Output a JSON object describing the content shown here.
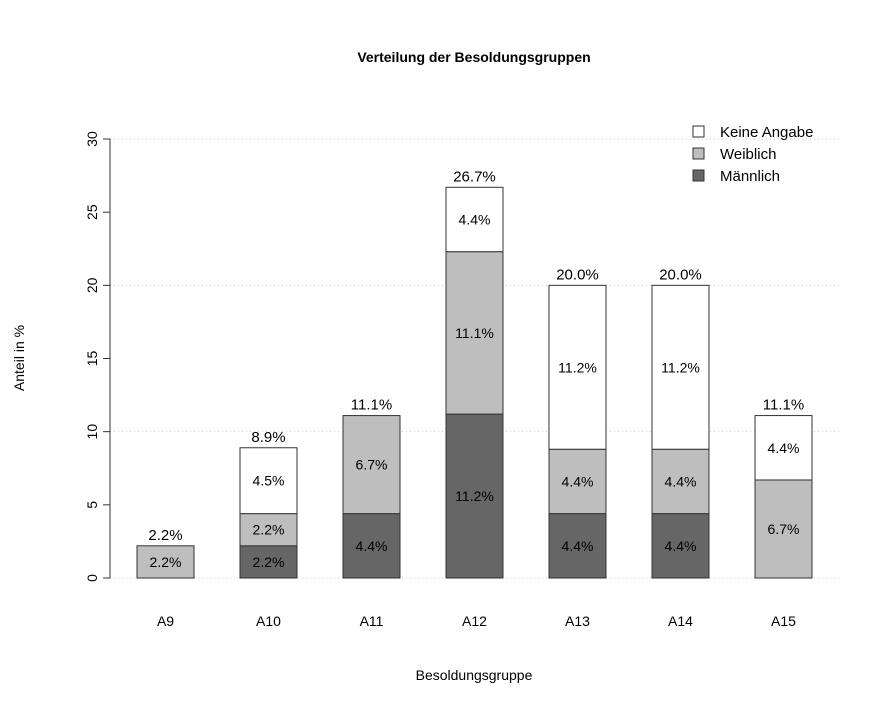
{
  "chart_data": {
    "type": "bar",
    "stacked": true,
    "title": "Verteilung der Besoldungsgruppen",
    "xlabel": "Besoldungsgruppe",
    "ylabel": "Anteil in %",
    "ylim": [
      0,
      30
    ],
    "yticks": [
      0,
      5,
      10,
      15,
      20,
      25,
      30
    ],
    "grid": {
      "horizontal": [
        0,
        10,
        20,
        30
      ],
      "style": "dotted"
    },
    "legend_position": "top-right",
    "categories": [
      "A9",
      "A10",
      "A11",
      "A12",
      "A13",
      "A14",
      "A15"
    ],
    "series": [
      {
        "name": "Männlich",
        "color": "#666666",
        "values": [
          0,
          2.2,
          4.4,
          11.2,
          4.4,
          4.4,
          0
        ],
        "labels": [
          "",
          "2.2%",
          "4.4%",
          "11.2%",
          "4.4%",
          "4.4%",
          ""
        ]
      },
      {
        "name": "Weiblich",
        "color": "#bebebe",
        "values": [
          2.2,
          2.2,
          6.7,
          11.1,
          4.4,
          4.4,
          6.7
        ],
        "labels": [
          "2.2%",
          "2.2%",
          "6.7%",
          "11.1%",
          "4.4%",
          "4.4%",
          "6.7%"
        ]
      },
      {
        "name": "Keine Angabe",
        "color": "#ffffff",
        "values": [
          0,
          4.5,
          0,
          4.4,
          11.2,
          11.2,
          4.4
        ],
        "labels": [
          "",
          "4.5%",
          "",
          "4.4%",
          "11.2%",
          "11.2%",
          "4.4%"
        ]
      }
    ],
    "totals": [
      2.2,
      8.9,
      11.1,
      26.7,
      20.0,
      20.0,
      11.1
    ],
    "total_labels": [
      "2.2%",
      "8.9%",
      "11.1%",
      "26.7%",
      "20.0%",
      "20.0%",
      "11.1%"
    ],
    "legend_order": [
      "Keine Angabe",
      "Weiblich",
      "Männlich"
    ]
  }
}
